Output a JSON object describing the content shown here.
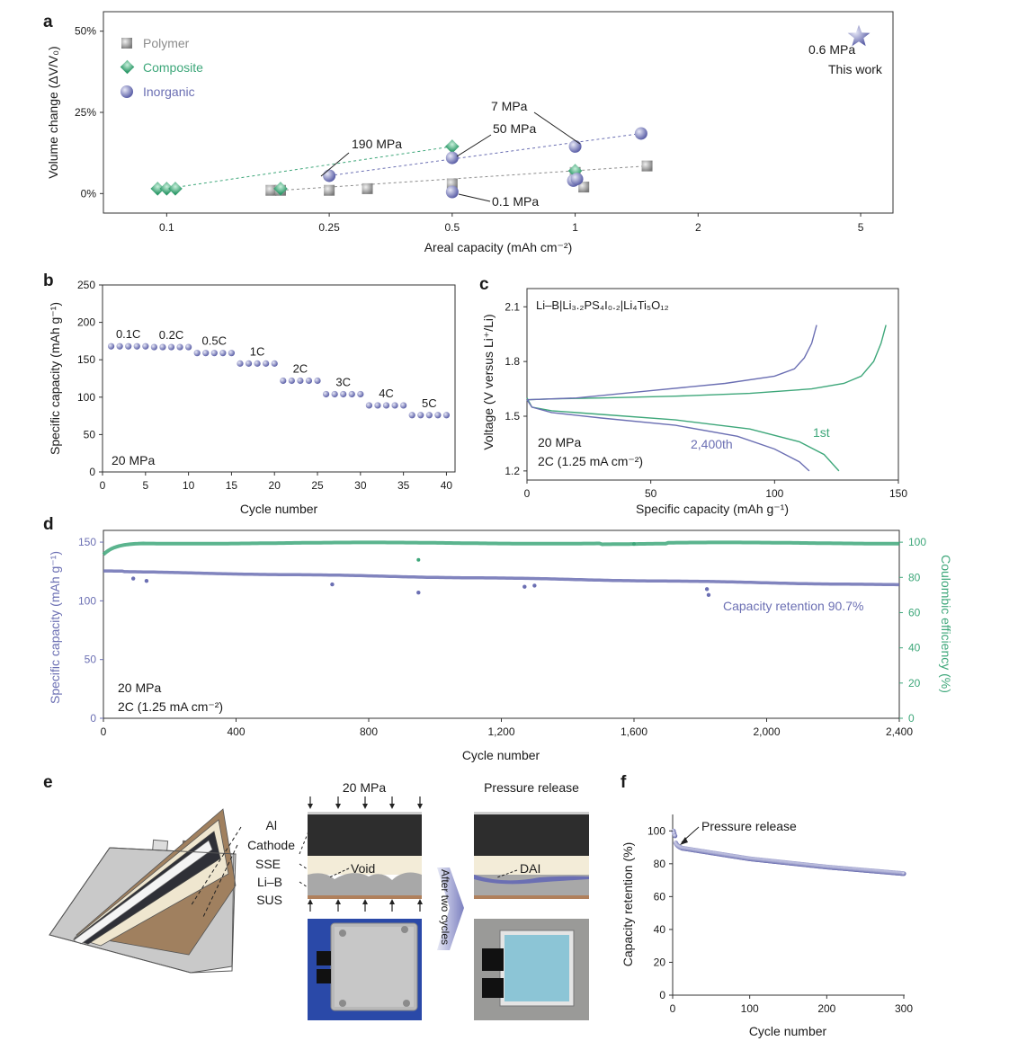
{
  "colors": {
    "polymer": "#8c8c8c",
    "composite": "#3ea77a",
    "inorganic": "#6b6fb3",
    "text": "#1a1a1a"
  },
  "chart_data": [
    {
      "panel": "a",
      "type": "scatter",
      "xlabel": "Areal capacity (mAh cm⁻²)",
      "ylabel": "Volume change (ΔV/V₀)",
      "xscale": "log",
      "xlim": [
        0.07,
        6
      ],
      "ylim": [
        -0.06,
        0.56
      ],
      "xticks": [
        {
          "v": 0.1,
          "label": "0.1"
        },
        {
          "v": 0.25,
          "label": "0.25"
        },
        {
          "v": 0.5,
          "label": "0.5"
        },
        {
          "v": 1,
          "label": "1"
        },
        {
          "v": 2,
          "label": "2"
        },
        {
          "v": 5,
          "label": "5"
        }
      ],
      "yticks": [
        {
          "v": 0,
          "label": "0%"
        },
        {
          "v": 0.25,
          "label": "25%"
        },
        {
          "v": 0.5,
          "label": "50%"
        }
      ],
      "legend": [
        {
          "name": "Polymer",
          "color": "#8c8c8c",
          "marker": "square"
        },
        {
          "name": "Composite",
          "color": "#3ea77a",
          "marker": "diamond"
        },
        {
          "name": "Inorganic",
          "color": "#6b6fb3",
          "marker": "circle"
        }
      ],
      "series": [
        {
          "name": "Polymer",
          "marker": "square",
          "points": [
            [
              0.18,
              0.01
            ],
            [
              0.19,
              0.01
            ],
            [
              0.25,
              0.01
            ],
            [
              0.31,
              0.015
            ],
            [
              0.5,
              0.03
            ],
            [
              1.0,
              0.065
            ],
            [
              1.05,
              0.02
            ],
            [
              1.5,
              0.085
            ]
          ]
        },
        {
          "name": "Composite",
          "marker": "diamond",
          "points": [
            [
              0.095,
              0.015
            ],
            [
              0.1,
              0.015
            ],
            [
              0.105,
              0.015
            ],
            [
              0.19,
              0.015
            ],
            [
              0.5,
              0.145
            ],
            [
              1.0,
              0.07
            ]
          ]
        },
        {
          "name": "Inorganic",
          "marker": "circle",
          "points": [
            [
              0.25,
              0.055
            ],
            [
              0.5,
              0.11
            ],
            [
              0.5,
              0.005
            ],
            [
              0.99,
              0.04
            ],
            [
              1.01,
              0.045
            ],
            [
              1.0,
              0.145
            ],
            [
              1.45,
              0.185
            ]
          ]
        }
      ],
      "trendlines": [
        {
          "series": "Composite",
          "from": [
            0.1,
            0.015
          ],
          "to": [
            0.5,
            0.145
          ]
        },
        {
          "series": "Inorganic",
          "from": [
            0.25,
            0.055
          ],
          "to": [
            1.45,
            0.185
          ]
        },
        {
          "series": "Polymer",
          "from": [
            0.19,
            0.01
          ],
          "to": [
            1.5,
            0.085
          ]
        }
      ],
      "annotations": [
        "190 MPa",
        "50 MPa",
        "7 MPa",
        "0.1 MPa"
      ],
      "highlight": {
        "label1": "0.6 MPa",
        "label2": "This work",
        "x": 5,
        "y": 0.5,
        "marker": "star"
      }
    },
    {
      "panel": "b",
      "type": "scatter",
      "xlabel": "Cycle number",
      "ylabel": "Specific capacity (mAh g⁻¹)",
      "xlim": [
        0,
        41
      ],
      "ylim": [
        0,
        250
      ],
      "xticks": [
        0,
        5,
        10,
        15,
        20,
        25,
        30,
        35,
        40
      ],
      "yticks": [
        0,
        50,
        100,
        150,
        200,
        250
      ],
      "groups": [
        {
          "label": "0.1C",
          "value": 168
        },
        {
          "label": "0.2C",
          "value": 167
        },
        {
          "label": "0.5C",
          "value": 159
        },
        {
          "label": "1C",
          "value": 145
        },
        {
          "label": "2C",
          "value": 122
        },
        {
          "label": "3C",
          "value": 104
        },
        {
          "label": "4C",
          "value": 89
        },
        {
          "label": "5C",
          "value": 76
        }
      ],
      "condition": "20 MPa"
    },
    {
      "panel": "c",
      "type": "line",
      "xlabel": "Specific capacity (mAh g⁻¹)",
      "ylabel": "Voltage (V versus Li⁺/Li)",
      "xlim": [
        0,
        150
      ],
      "ylim": [
        1.15,
        2.2
      ],
      "xticks": [
        0,
        50,
        100,
        150
      ],
      "yticks": [
        1.2,
        1.5,
        1.8,
        2.1
      ],
      "cell": "Li–B|Li₃.₂PS₄I₀.₂|Li₄Ti₅O₁₂",
      "series": [
        {
          "name": "1st",
          "color": "#3ea77a",
          "charge": [
            [
              0,
              1.59
            ],
            [
              10,
              1.595
            ],
            [
              30,
              1.6
            ],
            [
              60,
              1.61
            ],
            [
              90,
              1.625
            ],
            [
              115,
              1.65
            ],
            [
              128,
              1.68
            ],
            [
              135,
              1.72
            ],
            [
              140,
              1.8
            ],
            [
              143,
              1.9
            ],
            [
              145,
              2.0
            ]
          ],
          "discharge": [
            [
              0,
              1.6
            ],
            [
              2,
              1.55
            ],
            [
              10,
              1.53
            ],
            [
              30,
              1.51
            ],
            [
              60,
              1.48
            ],
            [
              90,
              1.43
            ],
            [
              110,
              1.36
            ],
            [
              120,
              1.29
            ],
            [
              126,
              1.2
            ]
          ]
        },
        {
          "name": "2,400th",
          "color": "#6b6fb3",
          "charge": [
            [
              0,
              1.59
            ],
            [
              20,
              1.6
            ],
            [
              50,
              1.64
            ],
            [
              80,
              1.68
            ],
            [
              100,
              1.72
            ],
            [
              108,
              1.76
            ],
            [
              112,
              1.82
            ],
            [
              115,
              1.9
            ],
            [
              117,
              2.0
            ]
          ],
          "discharge": [
            [
              0,
              1.59
            ],
            [
              2,
              1.55
            ],
            [
              10,
              1.52
            ],
            [
              30,
              1.49
            ],
            [
              60,
              1.45
            ],
            [
              85,
              1.39
            ],
            [
              100,
              1.32
            ],
            [
              110,
              1.25
            ],
            [
              114,
              1.2
            ]
          ]
        }
      ],
      "condition1": "20 MPa",
      "condition2": "2C (1.25 mA cm⁻²)"
    },
    {
      "panel": "d",
      "type": "scatter",
      "xlabel": "Cycle number",
      "ylabel": "Specific capacity (mAh g⁻¹)",
      "y2label": "Coulombic efficiency (%)",
      "xlim": [
        0,
        2400
      ],
      "ylim": [
        0,
        160
      ],
      "y2lim": [
        0,
        106.7
      ],
      "xticks": [
        {
          "v": 0,
          "label": "0"
        },
        {
          "v": 400,
          "label": "400"
        },
        {
          "v": 800,
          "label": "800"
        },
        {
          "v": 1200,
          "label": "1,200"
        },
        {
          "v": 1600,
          "label": "1,600"
        },
        {
          "v": 2000,
          "label": "2,000"
        },
        {
          "v": 2400,
          "label": "2,400"
        }
      ],
      "yticks": [
        0,
        50,
        100,
        150
      ],
      "y2ticks": [
        0,
        20,
        40,
        60,
        80,
        100
      ],
      "capacity": {
        "start": 125,
        "end": 113.5
      },
      "capacity_outliers": [
        [
          90,
          119
        ],
        [
          130,
          117
        ],
        [
          690,
          114
        ],
        [
          950,
          107
        ],
        [
          1270,
          112
        ],
        [
          1300,
          113
        ],
        [
          1820,
          110
        ],
        [
          1825,
          105
        ]
      ],
      "ce": {
        "start": 93,
        "plateau": 99.5
      },
      "ce_outliers": [
        [
          950,
          90
        ],
        [
          1600,
          99
        ]
      ],
      "annotation": "Capacity retention 90.7%",
      "condition1": "20 MPa",
      "condition2": "2C (1.25 mA cm⁻²)"
    },
    {
      "panel": "f",
      "type": "scatter",
      "xlabel": "Cycle number",
      "ylabel": "Capacity retention (%)",
      "xlim": [
        0,
        300
      ],
      "ylim": [
        0,
        110
      ],
      "xticks": [
        0,
        100,
        200,
        300
      ],
      "yticks": [
        0,
        20,
        40,
        60,
        80,
        100
      ],
      "points_hint": {
        "start": 100,
        "after_release": 91,
        "at100": 83,
        "at200": 78,
        "at300": 74
      },
      "annotation": "Pressure release"
    }
  ],
  "panel_labels": {
    "a": "a",
    "b": "b",
    "c": "c",
    "d": "d",
    "e": "e",
    "f": "f"
  },
  "schematic_e": {
    "layers": [
      "Al",
      "Cathode",
      "SSE",
      "Li–B",
      "SUS"
    ],
    "pressure_title": "20 MPa",
    "release_title": "Pressure release",
    "void_label": "Void",
    "dai_label": "DAI",
    "arrow_label": "After two cycles"
  }
}
